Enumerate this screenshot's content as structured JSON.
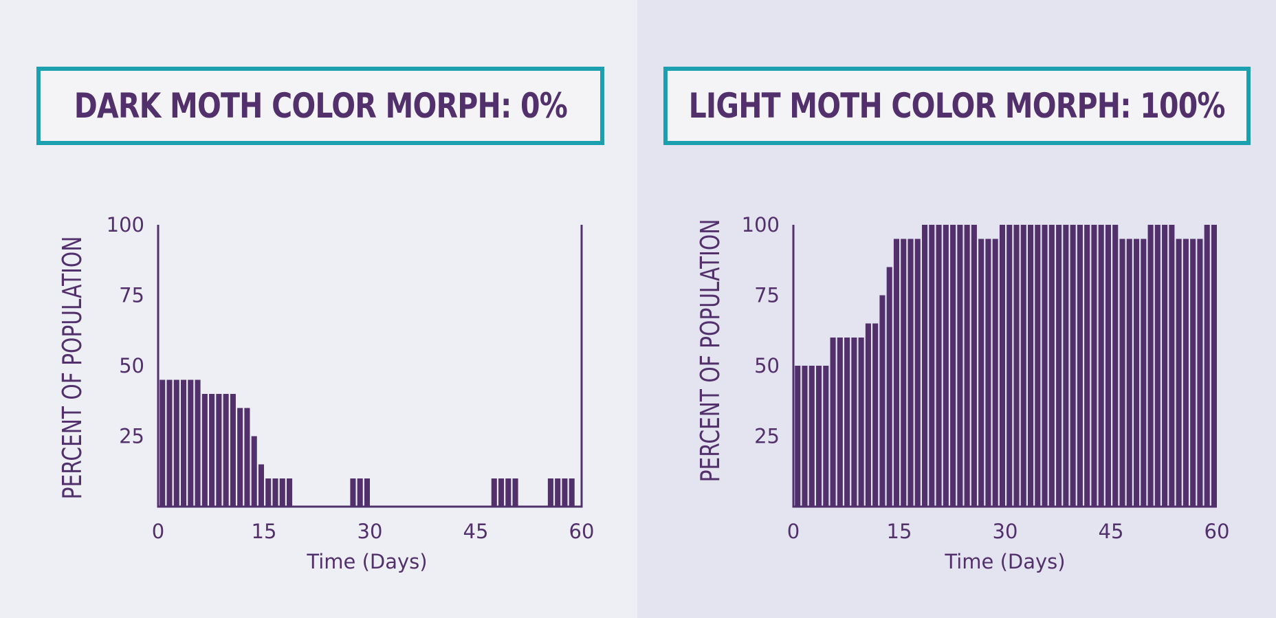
{
  "colors": {
    "bar": "#52306b",
    "frame": "#1c9fae",
    "text": "#52306b"
  },
  "panels": [
    {
      "title": "DARK MOTH COLOR MORPH: 0%"
    },
    {
      "title": "LIGHT MOTH COLOR MORPH: 100%"
    }
  ],
  "chart_data": [
    {
      "type": "bar",
      "title": "DARK MOTH COLOR MORPH: 0%",
      "xlabel": "Time (Days)",
      "ylabel": "PERCENT OF POPULATION",
      "xlim": [
        0,
        60
      ],
      "ylim": [
        0,
        100
      ],
      "xticks": [
        "0",
        "15",
        "30",
        "45",
        "60"
      ],
      "yticks": [
        "100",
        "75",
        "50",
        "25"
      ],
      "grid": false,
      "legend": "none",
      "x": [
        1,
        2,
        3,
        4,
        5,
        6,
        7,
        8,
        9,
        10,
        11,
        12,
        13,
        14,
        15,
        16,
        17,
        18,
        19,
        20,
        21,
        22,
        23,
        24,
        25,
        26,
        27,
        28,
        29,
        30,
        31,
        32,
        33,
        34,
        35,
        36,
        37,
        38,
        39,
        40,
        41,
        42,
        43,
        44,
        45,
        46,
        47,
        48,
        49,
        50,
        51,
        52,
        53,
        54,
        55,
        56,
        57,
        58,
        59,
        60
      ],
      "values": [
        45,
        45,
        45,
        45,
        45,
        45,
        40,
        40,
        40,
        40,
        40,
        35,
        35,
        25,
        15,
        10,
        10,
        10,
        10,
        0,
        0,
        0,
        0,
        0,
        0,
        0,
        0,
        10,
        10,
        10,
        0,
        0,
        0,
        0,
        0,
        0,
        0,
        0,
        0,
        0,
        0,
        0,
        0,
        0,
        0,
        0,
        0,
        10,
        10,
        10,
        10,
        0,
        0,
        0,
        0,
        10,
        10,
        10,
        10,
        0
      ]
    },
    {
      "type": "bar",
      "title": "LIGHT MOTH COLOR MORPH: 100%",
      "xlabel": "Time (Days)",
      "ylabel": "PERCENT OF POPULATION",
      "xlim": [
        0,
        60
      ],
      "ylim": [
        0,
        100
      ],
      "xticks": [
        "0",
        "15",
        "30",
        "45",
        "60"
      ],
      "yticks": [
        "100",
        "75",
        "50",
        "25"
      ],
      "grid": false,
      "legend": "none",
      "x": [
        1,
        2,
        3,
        4,
        5,
        6,
        7,
        8,
        9,
        10,
        11,
        12,
        13,
        14,
        15,
        16,
        17,
        18,
        19,
        20,
        21,
        22,
        23,
        24,
        25,
        26,
        27,
        28,
        29,
        30,
        31,
        32,
        33,
        34,
        35,
        36,
        37,
        38,
        39,
        40,
        41,
        42,
        43,
        44,
        45,
        46,
        47,
        48,
        49,
        50,
        51,
        52,
        53,
        54,
        55,
        56,
        57,
        58,
        59,
        60
      ],
      "values": [
        50,
        50,
        50,
        50,
        50,
        60,
        60,
        60,
        60,
        60,
        65,
        65,
        75,
        85,
        95,
        95,
        95,
        95,
        100,
        100,
        100,
        100,
        100,
        100,
        100,
        100,
        95,
        95,
        95,
        100,
        100,
        100,
        100,
        100,
        100,
        100,
        100,
        100,
        100,
        100,
        100,
        100,
        100,
        100,
        100,
        100,
        95,
        95,
        95,
        95,
        100,
        100,
        100,
        100,
        95,
        95,
        95,
        95,
        100,
        100
      ]
    }
  ]
}
